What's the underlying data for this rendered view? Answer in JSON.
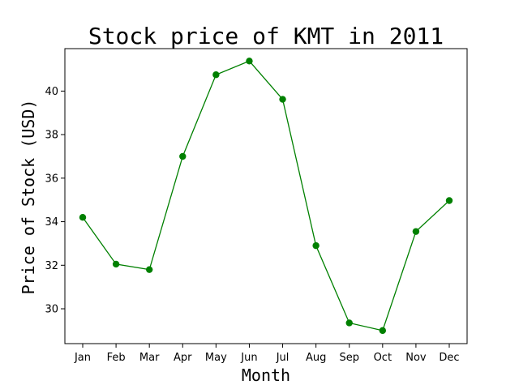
{
  "chart_data": {
    "type": "line",
    "title": "Stock price of KMT in 2011",
    "xlabel": "Month",
    "ylabel": "Price of Stock (USD)",
    "categories": [
      "Jan",
      "Feb",
      "Mar",
      "Apr",
      "May",
      "Jun",
      "Jul",
      "Aug",
      "Sep",
      "Oct",
      "Nov",
      "Dec"
    ],
    "series": [
      {
        "values": [
          34.2,
          32.05,
          31.8,
          37.0,
          40.75,
          41.38,
          39.62,
          32.9,
          29.35,
          29.0,
          33.55,
          34.97
        ],
        "color": "#008000"
      }
    ],
    "ylim": [
      28.4,
      41.95
    ],
    "yticks": [
      30,
      32,
      34,
      36,
      38,
      40
    ],
    "grid": false,
    "legend": false
  }
}
